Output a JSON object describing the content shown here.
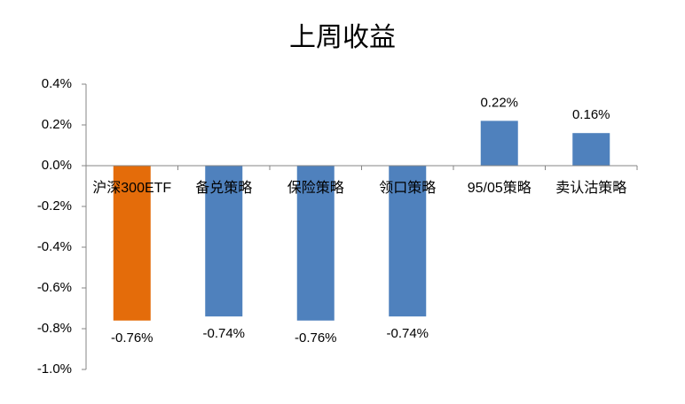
{
  "chart_data": {
    "type": "bar",
    "title": "上周收益",
    "categories": [
      "沪深300ETF",
      "备兑策略",
      "保险策略",
      "领口策略",
      "95/05策略",
      "卖认沽策略"
    ],
    "values": [
      -0.76,
      -0.74,
      -0.76,
      -0.74,
      0.22,
      0.16
    ],
    "value_labels": [
      "-0.76%",
      "-0.74%",
      "-0.76%",
      "-0.74%",
      "0.22%",
      "0.16%"
    ],
    "colors": [
      "#e46c0a",
      "#4f81bd",
      "#4f81bd",
      "#4f81bd",
      "#4f81bd",
      "#4f81bd"
    ],
    "ylim": [
      -1.0,
      0.4
    ],
    "yticks": [
      {
        "value": 0.4,
        "label": "0.4%"
      },
      {
        "value": 0.2,
        "label": "0.2%"
      },
      {
        "value": 0,
        "label": "0.0%"
      },
      {
        "value": -0.2,
        "label": "-0.2%"
      },
      {
        "value": -0.4,
        "label": "-0.4%"
      },
      {
        "value": -0.6,
        "label": "-0.6%"
      },
      {
        "value": -0.8,
        "label": "-0.8%"
      },
      {
        "value": -1.0,
        "label": "-1.0%"
      }
    ],
    "grid": false
  }
}
